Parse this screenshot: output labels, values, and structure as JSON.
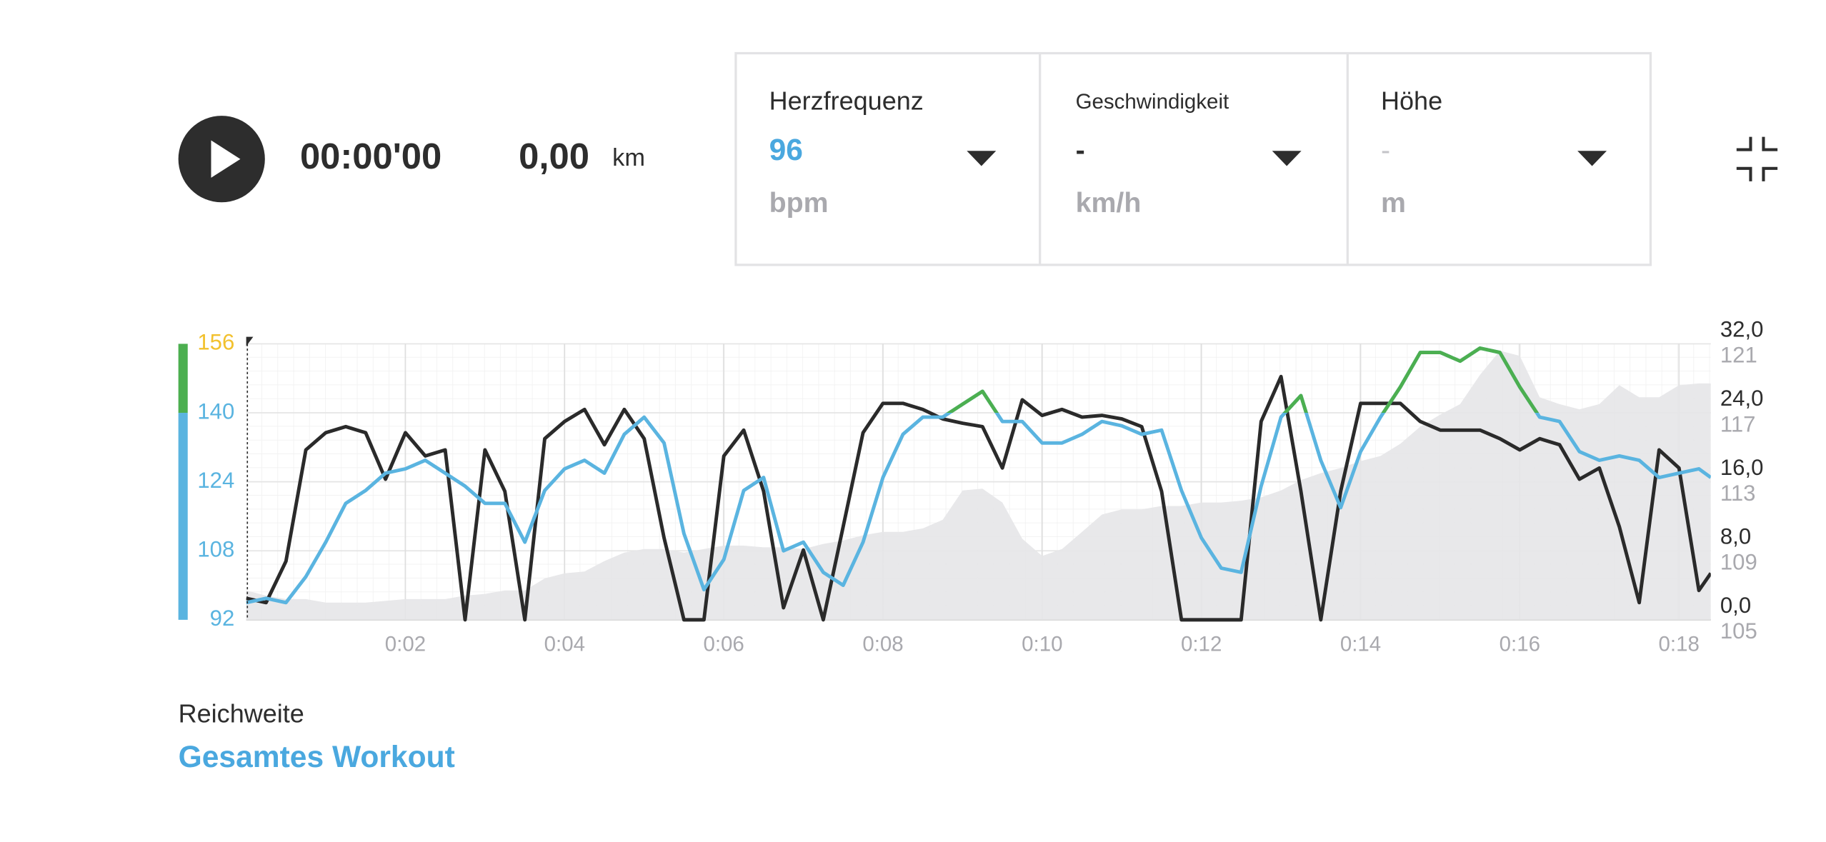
{
  "player": {
    "time": "00:00'00",
    "distance": "0,00",
    "distance_unit": "km"
  },
  "metrics": [
    {
      "label": "Herzfrequenz",
      "value": "96",
      "unit": "bpm"
    },
    {
      "label": "Geschwindigkeit",
      "value": "-",
      "unit": "km/h"
    },
    {
      "label": "Höhe",
      "value": "-",
      "unit": "m"
    }
  ],
  "chart_data": {
    "type": "line",
    "x": [
      0,
      0.25,
      0.5,
      0.75,
      1,
      1.25,
      1.5,
      1.75,
      2,
      2.25,
      2.5,
      2.75,
      3,
      3.25,
      3.5,
      3.75,
      4,
      4.25,
      4.5,
      4.75,
      5,
      5.25,
      5.5,
      5.75,
      6,
      6.25,
      6.5,
      6.75,
      7,
      7.25,
      7.5,
      7.75,
      8,
      8.25,
      8.5,
      8.75,
      9,
      9.25,
      9.5,
      9.75,
      10,
      10.25,
      10.5,
      10.75,
      11,
      11.25,
      11.5,
      11.75,
      12,
      12.25,
      12.5,
      12.75,
      13,
      13.25,
      13.5,
      13.75,
      14,
      14.25,
      14.5,
      14.75,
      15,
      15.25,
      15.5,
      15.75,
      16,
      16.25,
      16.5,
      16.75,
      17,
      17.25,
      17.5,
      17.75,
      18,
      18.25,
      18.4
    ],
    "xlim": [
      0,
      18.4
    ],
    "xticks": [
      {
        "value": 2,
        "label": "0:02"
      },
      {
        "value": 4,
        "label": "0:04"
      },
      {
        "value": 6,
        "label": "0:06"
      },
      {
        "value": 8,
        "label": "0:08"
      },
      {
        "value": 10,
        "label": "0:10"
      },
      {
        "value": 12,
        "label": "0:12"
      },
      {
        "value": 14,
        "label": "0:14"
      },
      {
        "value": 16,
        "label": "0:16"
      },
      {
        "value": 18,
        "label": "0:18"
      }
    ],
    "ylim": [
      92,
      156
    ],
    "yticks": [
      92,
      108,
      124,
      140,
      156
    ],
    "ytick_colors": [
      "#5ab4e0",
      "#5ab4e0",
      "#5ab4e0",
      "#5ab4e0",
      "#f2c12e"
    ],
    "zones": [
      {
        "from": 92,
        "to": 140,
        "color": "#5ab4e0"
      },
      {
        "from": 140,
        "to": 156,
        "color": "#4caf50"
      }
    ],
    "y2lim": [
      0,
      32
    ],
    "y2ticks": [
      {
        "value": 0,
        "label": "0,0"
      },
      {
        "value": 8,
        "label": "8,0"
      },
      {
        "value": 16,
        "label": "16,0"
      },
      {
        "value": 24,
        "label": "24,0"
      },
      {
        "value": 32,
        "label": "32,0"
      }
    ],
    "y3lim": [
      105,
      121
    ],
    "y3ticks": [
      105,
      109,
      113,
      117,
      121
    ],
    "grid": true,
    "series": [
      {
        "axis": "y3",
        "color": "#e6e6e8",
        "fill": true,
        "values": [
          106.7,
          106.4,
          106.2,
          106.2,
          106.0,
          106.0,
          106.0,
          106.1,
          106.2,
          106.2,
          106.2,
          106.4,
          106.5,
          106.7,
          106.7,
          107.4,
          107.7,
          107.8,
          108.4,
          108.9,
          109.1,
          109.1,
          108.9,
          109.1,
          109.3,
          109.3,
          109.2,
          109.2,
          109.1,
          109.4,
          109.6,
          109.9,
          110.1,
          110.1,
          110.3,
          110.8,
          112.5,
          112.6,
          111.8,
          109.7,
          108.7,
          109.1,
          110.1,
          111.1,
          111.4,
          111.4,
          111.6,
          111.6,
          111.8,
          111.8,
          111.9,
          112.1,
          112.5,
          113.1,
          113.5,
          113.8,
          114.2,
          114.5,
          115.2,
          116.2,
          116.9,
          117.5,
          119.2,
          120.6,
          120.3,
          117.9,
          117.5,
          117.2,
          117.5,
          118.6,
          117.9,
          117.9,
          118.6,
          118.7,
          118.7
        ]
      },
      {
        "axis": "y2",
        "color": "#2a2a2a",
        "values": [
          2.5,
          2.0,
          6.8,
          19.7,
          21.7,
          22.4,
          21.7,
          16.3,
          21.7,
          19.0,
          19.7,
          0,
          19.7,
          14.9,
          0,
          21.0,
          23.0,
          24.4,
          20.3,
          24.4,
          21.0,
          9.5,
          0,
          0,
          19.0,
          22.0,
          14.9,
          1.4,
          8.1,
          0,
          10.8,
          21.7,
          25.1,
          25.1,
          24.4,
          23.3,
          22.8,
          22.4,
          17.6,
          25.5,
          23.7,
          24.4,
          23.5,
          23.7,
          23.3,
          22.4,
          14.9,
          0,
          0,
          0,
          0,
          23.0,
          28.2,
          14.9,
          0,
          14.9,
          25.1,
          25.1,
          25.1,
          23.0,
          22.0,
          22.0,
          22.0,
          21.0,
          19.7,
          21.0,
          20.3,
          16.3,
          17.6,
          10.8,
          2.0,
          19.7,
          17.6,
          3.4,
          5.4
        ]
      },
      {
        "axis": "y",
        "color": "#5ab4e0",
        "zoned": true,
        "values": [
          96,
          97,
          96,
          102,
          110,
          119,
          122,
          126,
          127,
          129,
          126,
          123,
          119,
          119,
          110,
          122,
          127,
          129,
          126,
          135,
          139,
          133,
          112,
          99,
          106,
          122,
          125,
          108,
          110,
          103,
          100,
          110,
          125,
          135,
          139,
          139,
          142,
          145,
          138,
          138,
          133,
          133,
          135,
          138,
          137,
          135,
          136,
          122,
          111,
          104,
          103,
          123,
          139,
          144,
          129,
          118,
          131,
          139,
          146,
          154,
          154,
          152,
          155,
          154,
          146,
          139,
          138,
          131,
          129,
          130,
          129,
          125,
          126,
          127,
          125
        ]
      }
    ]
  },
  "range": {
    "label": "Reichweite",
    "value": "Gesamtes Workout"
  }
}
